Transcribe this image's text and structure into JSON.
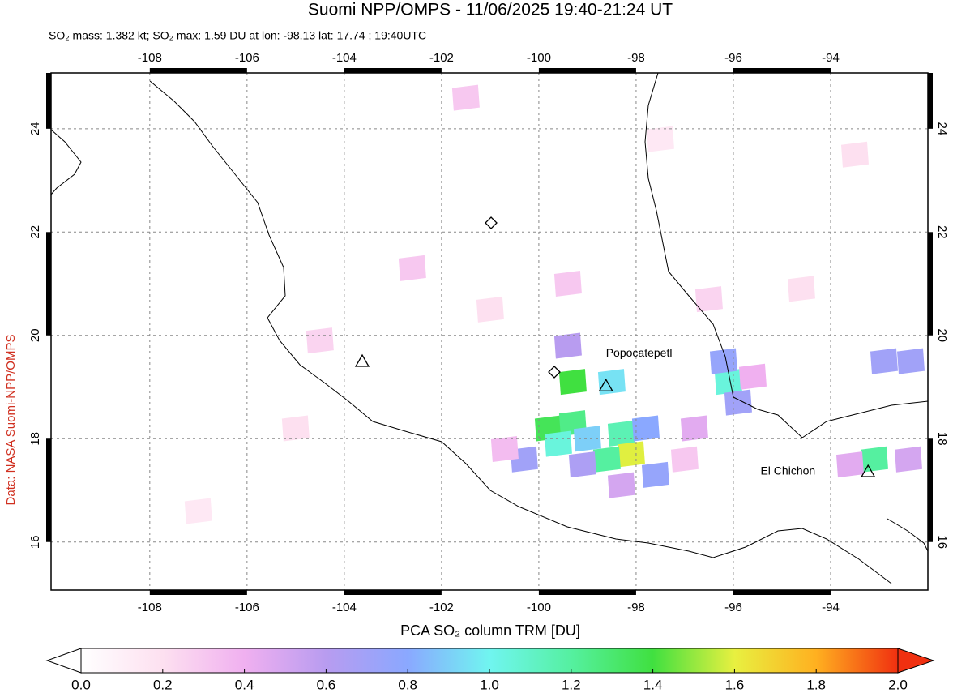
{
  "chart_data": {
    "type": "map",
    "title": "Suomi NPP/OMPS - 11/06/2025 19:40-21:24 UT",
    "subtitle": "SO₂ mass: 1.382 kt; SO₂ max: 1.59 DU at lon: -98.13 lat: 17.74 ; 19:40UTC",
    "source": "Data: NASA Suomi-NPP/OMPS",
    "colorbar_label": "PCA SO₂ column TRM [DU]",
    "xlim": [
      -110.03,
      -92.0
    ],
    "ylim": [
      15.07,
      25.08
    ],
    "xticks": [
      -108,
      -106,
      -104,
      -102,
      -100,
      -98,
      -96,
      -94
    ],
    "yticks": [
      16,
      18,
      20,
      22,
      24
    ],
    "grid": true,
    "clim": [
      0,
      2
    ],
    "cticks": [
      {
        "value": 0,
        "label": "0.0"
      },
      {
        "value": 0.2,
        "label": "0.2"
      },
      {
        "value": 0.4,
        "label": "0.4"
      },
      {
        "value": 0.6,
        "label": "0.6"
      },
      {
        "value": 0.8,
        "label": "0.8"
      },
      {
        "value": 1,
        "label": "1.0"
      },
      {
        "value": 1.2,
        "label": "1.2"
      },
      {
        "value": 1.4,
        "label": "1.4"
      },
      {
        "value": 1.6,
        "label": "1.6"
      },
      {
        "value": 1.8,
        "label": "1.8"
      },
      {
        "value": 2,
        "label": "2.0"
      }
    ],
    "colormap": [
      "#ffffff",
      "#fde0f0",
      "#f0b0f0",
      "#b89cf0",
      "#8aa8ff",
      "#70f5f0",
      "#55f0a0",
      "#40e040",
      "#e8f040",
      "#ffb020",
      "#f03010"
    ],
    "volcanoes": [
      {
        "name": "Popocatepetl",
        "lon": -98.62,
        "lat": 19.02
      },
      {
        "name": "El Chichon",
        "lon": -93.23,
        "lat": 17.36
      }
    ],
    "pixels": [
      {
        "lon": -99.3,
        "lat": 19.1,
        "value": 1.4
      },
      {
        "lon": -98.5,
        "lat": 19.1,
        "value": 0.95
      },
      {
        "lon": -99.8,
        "lat": 18.2,
        "value": 1.35
      },
      {
        "lon": -99.3,
        "lat": 18.3,
        "value": 1.25
      },
      {
        "lon": -99.6,
        "lat": 17.9,
        "value": 1.05
      },
      {
        "lon": -99.0,
        "lat": 18.0,
        "value": 0.9
      },
      {
        "lon": -98.3,
        "lat": 18.1,
        "value": 1.15
      },
      {
        "lon": -98.1,
        "lat": 17.7,
        "value": 1.59
      },
      {
        "lon": -98.6,
        "lat": 17.6,
        "value": 1.2
      },
      {
        "lon": -97.8,
        "lat": 18.2,
        "value": 0.8
      },
      {
        "lon": -100.3,
        "lat": 17.6,
        "value": 0.7
      },
      {
        "lon": -99.1,
        "lat": 17.5,
        "value": 0.65
      },
      {
        "lon": -97.6,
        "lat": 17.3,
        "value": 0.75
      },
      {
        "lon": -98.3,
        "lat": 17.1,
        "value": 0.5
      },
      {
        "lon": -96.1,
        "lat": 19.1,
        "value": 1.05
      },
      {
        "lon": -96.2,
        "lat": 19.5,
        "value": 0.75
      },
      {
        "lon": -99.4,
        "lat": 19.8,
        "value": 0.6
      },
      {
        "lon": -93.1,
        "lat": 17.6,
        "value": 1.2
      },
      {
        "lon": -92.4,
        "lat": 17.6,
        "value": 0.5
      },
      {
        "lon": -92.9,
        "lat": 19.5,
        "value": 0.7
      },
      {
        "lon": -92.35,
        "lat": 19.5,
        "value": 0.7
      },
      {
        "lon": -95.9,
        "lat": 18.7,
        "value": 0.7
      },
      {
        "lon": -95.6,
        "lat": 19.2,
        "value": 0.4
      },
      {
        "lon": -96.8,
        "lat": 18.2,
        "value": 0.45
      },
      {
        "lon": -93.6,
        "lat": 17.5,
        "value": 0.45
      },
      {
        "lon": -101.5,
        "lat": 24.6,
        "value": 0.3
      },
      {
        "lon": -102.6,
        "lat": 21.3,
        "value": 0.3
      },
      {
        "lon": -99.4,
        "lat": 21.0,
        "value": 0.3
      },
      {
        "lon": -101.0,
        "lat": 20.5,
        "value": 0.2
      },
      {
        "lon": -96.5,
        "lat": 20.7,
        "value": 0.25
      },
      {
        "lon": -93.5,
        "lat": 23.5,
        "value": 0.2
      },
      {
        "lon": -105.0,
        "lat": 18.2,
        "value": 0.2
      },
      {
        "lon": -97.5,
        "lat": 23.8,
        "value": 0.15
      },
      {
        "lon": -104.5,
        "lat": 19.9,
        "value": 0.25
      },
      {
        "lon": -107.0,
        "lat": 16.6,
        "value": 0.15
      },
      {
        "lon": -100.7,
        "lat": 17.8,
        "value": 0.35
      },
      {
        "lon": -97.0,
        "lat": 17.6,
        "value": 0.3
      },
      {
        "lon": -94.6,
        "lat": 20.9,
        "value": 0.2
      }
    ]
  }
}
